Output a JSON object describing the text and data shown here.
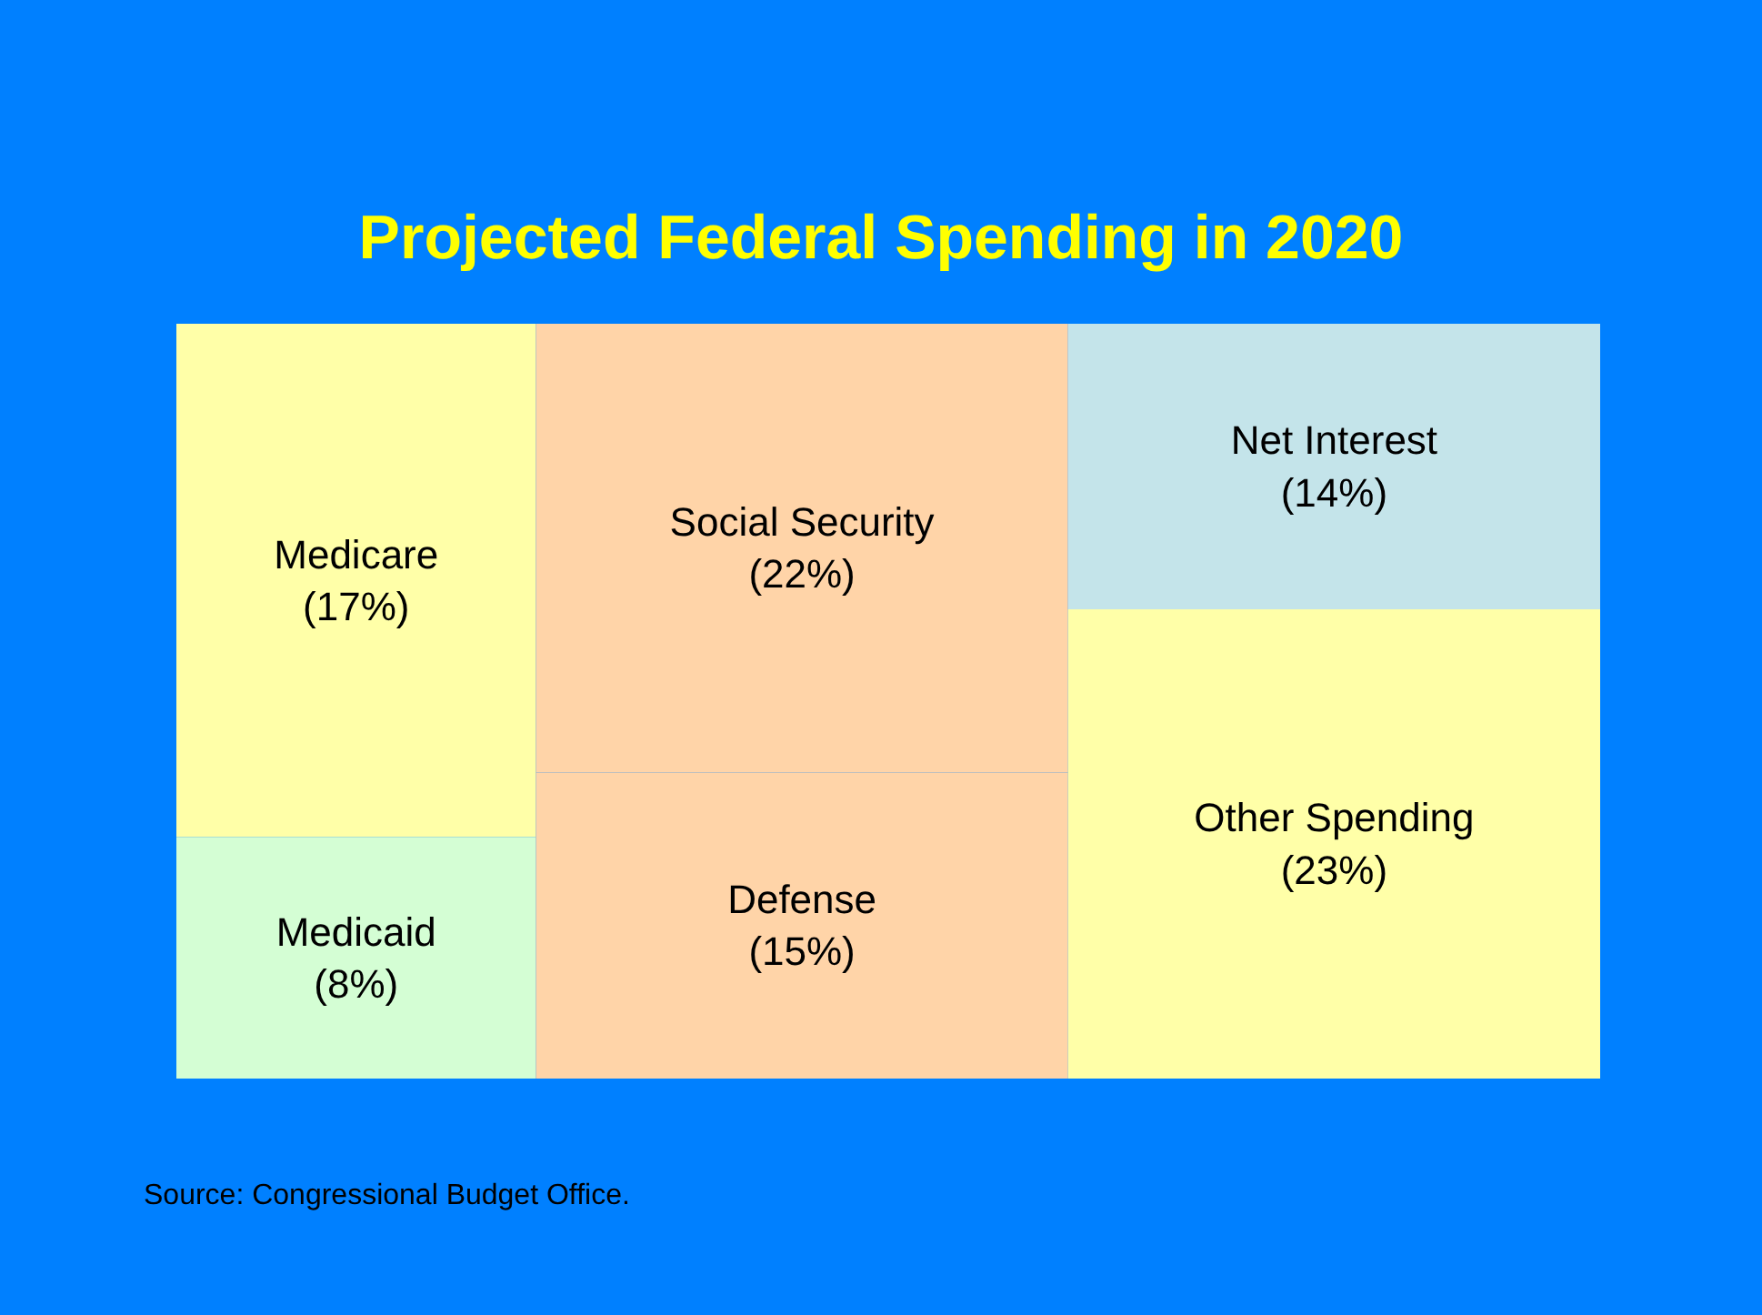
{
  "chart_data": {
    "type": "other",
    "title": "Projected Federal Spending in 2020",
    "categories": [
      "Medicare",
      "Medicaid",
      "Social Security",
      "Defense",
      "Net Interest",
      "Other Spending"
    ],
    "values": [
      17,
      8,
      22,
      15,
      14,
      23
    ],
    "value_labels": [
      "(17%)",
      "(8%)",
      "(22%)",
      "(15%)",
      "(14%)",
      "(23%)"
    ],
    "colors": [
      "#ffffa8",
      "#d4fed4",
      "#ffd4a8",
      "#ffd4a8",
      "#c4e4ea",
      "#ffffa8"
    ],
    "annotations": [
      "Source: Congressional Budget Office."
    ]
  }
}
